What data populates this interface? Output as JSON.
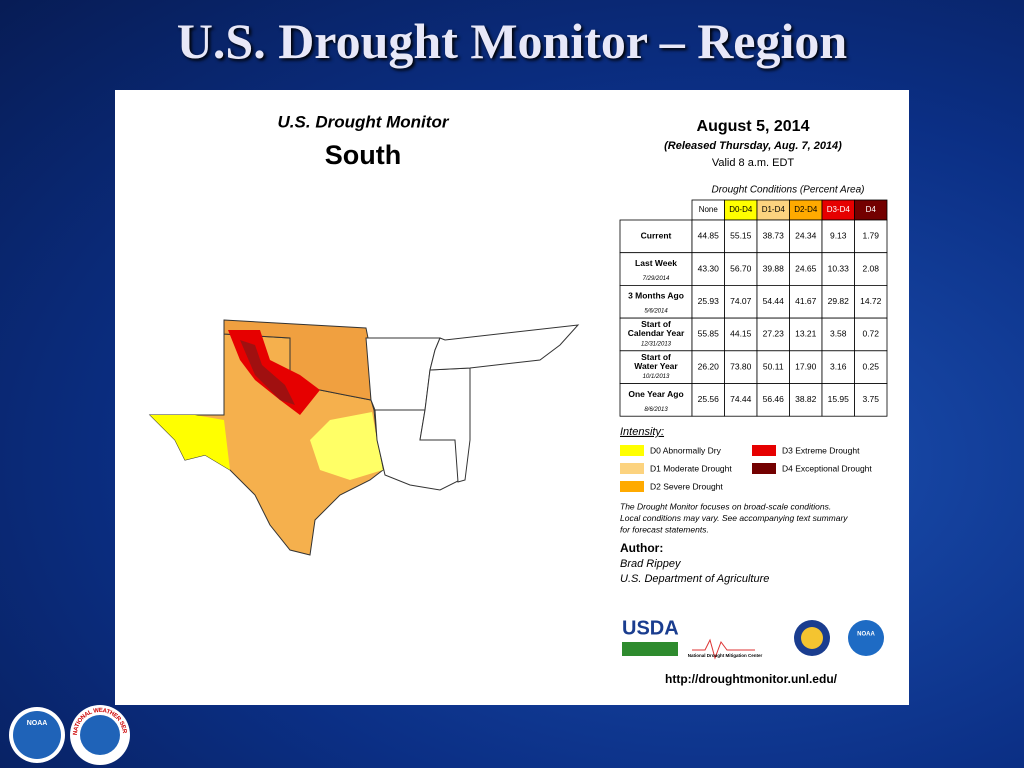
{
  "header": {
    "title": "U.S. Drought Monitor – Region"
  },
  "map": {
    "title": "U.S. Drought Monitor",
    "region": "South"
  },
  "info": {
    "date": "August 5, 2014",
    "released": "(Released Thursday, Aug. 7, 2014)",
    "valid": "Valid  8 a.m. EDT"
  },
  "table": {
    "caption": "Drought Conditions (Percent Area)",
    "columns": [
      "None",
      "D0-D4",
      "D1-D4",
      "D2-D4",
      "D3-D4",
      "D4"
    ],
    "column_colors": [
      "#ffffff",
      "#ffff00",
      "#fcd37f",
      "#ffaa00",
      "#e60000",
      "#730000"
    ],
    "rows": [
      {
        "label": "Current",
        "values": [
          "44.85",
          "55.15",
          "38.73",
          "24.34",
          "9.13",
          "1.79"
        ]
      },
      {
        "label": "Last Week",
        "date": "7/29/2014",
        "values": [
          "43.30",
          "56.70",
          "39.88",
          "24.65",
          "10.33",
          "2.08"
        ]
      },
      {
        "label": "3 Months Ago",
        "date": "5/6/2014",
        "values": [
          "25.93",
          "74.07",
          "54.44",
          "41.67",
          "29.82",
          "14.72"
        ]
      },
      {
        "label": "Start of Calendar Year",
        "date": "12/31/2013",
        "values": [
          "55.85",
          "44.15",
          "27.23",
          "13.21",
          "3.58",
          "0.72"
        ]
      },
      {
        "label": "Start of Water Year",
        "date": "10/1/2013",
        "values": [
          "26.20",
          "73.80",
          "50.11",
          "17.90",
          "3.16",
          "0.25"
        ]
      },
      {
        "label": "One Year Ago",
        "date": "8/6/2013",
        "values": [
          "25.56",
          "74.44",
          "56.46",
          "38.82",
          "15.95",
          "3.75"
        ]
      }
    ]
  },
  "legend": {
    "title": "Intensity:",
    "items": [
      {
        "label": "D0 Abnormally Dry",
        "color": "#ffff00"
      },
      {
        "label": "D1 Moderate Drought",
        "color": "#fcd37f"
      },
      {
        "label": "D2 Severe Drought",
        "color": "#ffaa00"
      },
      {
        "label": "D3 Extreme Drought",
        "color": "#e60000"
      },
      {
        "label": "D4 Exceptional Drought",
        "color": "#730000"
      }
    ]
  },
  "note": [
    "The Drought Monitor focuses on broad-scale conditions.",
    "Local conditions may vary. See accompanying text summary",
    "for forecast statements."
  ],
  "author": {
    "heading": "Author:",
    "name": "Brad Rippey",
    "org": "U.S. Department of Agriculture"
  },
  "logos": {
    "usda": "USDA",
    "ndmc": "National Drought Mitigation Center",
    "noaa": "NOAA",
    "nws": "NATIONAL WEATHER SERVICE"
  },
  "url": "http://droughtmonitor.unl.edu/"
}
